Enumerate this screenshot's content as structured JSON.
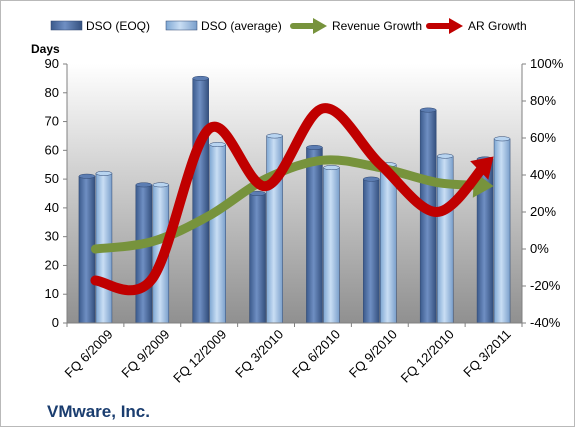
{
  "chart_data": {
    "type": "bar",
    "company": "VMware, Inc.",
    "ylabel": "Days",
    "categories": [
      "FQ 6/2009",
      "FQ 9/2009",
      "FQ 12/2009",
      "FQ 3/2010",
      "FQ 6/2010",
      "FQ 9/2010",
      "FQ 12/2010",
      "FQ 3/2011"
    ],
    "ylim": [
      0,
      90
    ],
    "y_ticks": [
      "0",
      "10",
      "20",
      "30",
      "40",
      "50",
      "60",
      "70",
      "80",
      "90"
    ],
    "y2lim": [
      -40,
      100
    ],
    "y2_ticks": [
      "-40%",
      "-20%",
      "0%",
      "20%",
      "40%",
      "60%",
      "80%",
      "100%"
    ],
    "bar_series": [
      {
        "name": "DSO (EOQ)",
        "color": "#4f6fa3",
        "values": [
          51,
          48,
          85,
          45,
          61,
          50,
          74,
          57
        ]
      },
      {
        "name": "DSO (average)",
        "color": "#a8c8ea",
        "values": [
          52,
          48,
          62,
          65,
          54,
          55,
          58,
          64
        ]
      }
    ],
    "line_series": [
      {
        "name": "Revenue Growth",
        "color": "#77933c",
        "axis": "right",
        "values": [
          0,
          4,
          18,
          38,
          48,
          44,
          36,
          34
        ]
      },
      {
        "name": "AR Growth",
        "color": "#c00000",
        "axis": "right",
        "values": [
          -17,
          -16,
          65,
          34,
          76,
          46,
          20,
          50
        ]
      }
    ],
    "grid": false,
    "legend_position": "top"
  }
}
